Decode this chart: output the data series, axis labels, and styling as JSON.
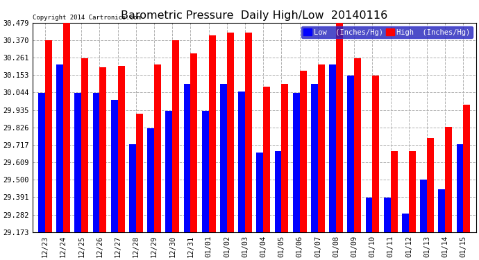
{
  "title": "Barometric Pressure  Daily High/Low  20140116",
  "copyright": "Copyright 2014 Cartronics.com",
  "legend_low": "Low  (Inches/Hg)",
  "legend_high": "High  (Inches/Hg)",
  "dates": [
    "12/23",
    "12/24",
    "12/25",
    "12/26",
    "12/27",
    "12/28",
    "12/29",
    "12/30",
    "12/31",
    "01/01",
    "01/02",
    "01/03",
    "01/04",
    "01/05",
    "01/06",
    "01/07",
    "01/08",
    "01/09",
    "01/10",
    "01/11",
    "01/12",
    "01/13",
    "01/14",
    "01/15"
  ],
  "low_values": [
    30.04,
    30.22,
    30.04,
    30.04,
    30.0,
    29.72,
    29.82,
    29.93,
    30.1,
    29.93,
    30.1,
    30.05,
    29.67,
    29.68,
    30.04,
    30.1,
    30.22,
    30.15,
    29.39,
    29.39,
    29.29,
    29.5,
    29.44,
    29.72
  ],
  "high_values": [
    30.37,
    30.48,
    30.26,
    30.2,
    30.21,
    29.91,
    30.22,
    30.37,
    30.29,
    30.4,
    30.42,
    30.42,
    30.08,
    30.1,
    30.18,
    30.22,
    30.48,
    30.26,
    30.15,
    29.68,
    29.68,
    29.76,
    29.83,
    29.97
  ],
  "ymin": 29.173,
  "ymax": 30.479,
  "yticks": [
    29.173,
    29.282,
    29.391,
    29.5,
    29.609,
    29.717,
    29.826,
    29.935,
    30.044,
    30.153,
    30.261,
    30.37,
    30.479
  ],
  "low_color": "#0000ff",
  "high_color": "#ff0000",
  "bg_color": "#ffffff",
  "grid_color": "#b0b0b0",
  "title_fontsize": 11.5,
  "bar_width": 0.38,
  "figwidth": 6.9,
  "figheight": 3.75,
  "dpi": 100
}
